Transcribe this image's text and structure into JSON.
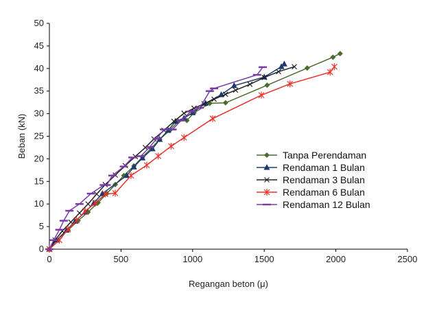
{
  "chart_data": {
    "type": "line",
    "xlabel": "Regangan beton (μ)",
    "ylabel": "Beban (kN)",
    "xlim": [
      0,
      2500
    ],
    "ylim": [
      0,
      50
    ],
    "x_ticks": [
      "0",
      "500",
      "1000",
      "1500",
      "2000",
      "2500"
    ],
    "y_ticks": [
      "0",
      "5",
      "10",
      "15",
      "20",
      "25",
      "30",
      "35",
      "40",
      "45",
      "50"
    ],
    "grid": false,
    "legend_position": "right",
    "series": [
      {
        "name": "Tanpa Perendaman",
        "color": "#4a6b2e",
        "marker": "diamond",
        "x": [
          0,
          50,
          130,
          200,
          270,
          340,
          400,
          460,
          520,
          590,
          650,
          710,
          770,
          840,
          900,
          960,
          1010,
          1120,
          1230,
          1520,
          1800,
          1980,
          2030
        ],
        "y": [
          0,
          2,
          4.2,
          6.3,
          8.2,
          10.3,
          12.3,
          14.3,
          16.3,
          18.4,
          20.4,
          22.3,
          24.3,
          26.3,
          28.3,
          28.5,
          30.2,
          32.3,
          32.4,
          36.3,
          40.1,
          42.5,
          43.3
        ]
      },
      {
        "name": "Rendaman 1 Bulan",
        "color": "#1f3a6d",
        "marker": "triangle",
        "x": [
          0,
          50,
          120,
          180,
          250,
          310,
          370,
          540,
          590,
          650,
          720,
          770,
          830,
          880,
          940,
          1000,
          1090,
          1200,
          1290,
          1500,
          1620,
          1640
        ],
        "y": [
          0,
          2,
          4.2,
          6.2,
          8.2,
          10.2,
          12.3,
          16.3,
          18.2,
          20.2,
          22.2,
          24.3,
          26.3,
          28.3,
          29,
          30.2,
          32.3,
          34.2,
          36.2,
          38.1,
          40.4,
          41
        ]
      },
      {
        "name": "Rendaman 3 Bulan",
        "color": "#222222",
        "marker": "x",
        "x": [
          0,
          40,
          90,
          150,
          210,
          270,
          330,
          390,
          460,
          530,
          600,
          670,
          730,
          800,
          870,
          940,
          1010,
          1080,
          1150,
          1230,
          1300,
          1400,
          1500,
          1600,
          1710
        ],
        "y": [
          0,
          2,
          4,
          6,
          8,
          10,
          12.2,
          14.3,
          16.4,
          18.5,
          20.5,
          22.5,
          24.4,
          26.3,
          28.3,
          30.1,
          31.2,
          32.2,
          33.2,
          34.3,
          35.2,
          36.5,
          38,
          39.3,
          40.4
        ]
      },
      {
        "name": "Rendaman 6 Bulan",
        "color": "#e8322a",
        "marker": "star",
        "x": [
          0,
          70,
          130,
          190,
          250,
          320,
          390,
          460,
          570,
          680,
          760,
          850,
          940,
          1140,
          1480,
          1680,
          1960,
          1990
        ],
        "y": [
          0,
          2,
          4.4,
          6.4,
          8.4,
          10.2,
          12.2,
          12.4,
          16.3,
          18.6,
          20.6,
          22.8,
          24.7,
          28.9,
          34.1,
          36.6,
          39.2,
          40.4
        ]
      },
      {
        "name": "Rendaman 12 Bulan",
        "color": "#7a3aa8",
        "marker": "dash",
        "x": [
          0,
          30,
          70,
          100,
          140,
          210,
          290,
          380,
          400,
          440,
          520,
          580,
          640,
          700,
          750,
          800,
          860,
          920,
          990,
          1050,
          1120,
          1150,
          1450,
          1490
        ],
        "y": [
          0,
          2,
          4.3,
          6.3,
          8.5,
          10,
          12.3,
          14.2,
          14.2,
          16.3,
          18.3,
          20.3,
          20.6,
          22.6,
          24.5,
          26.5,
          26.5,
          28.5,
          30.5,
          31.3,
          35,
          35.6,
          38.6,
          40.3
        ]
      }
    ]
  }
}
